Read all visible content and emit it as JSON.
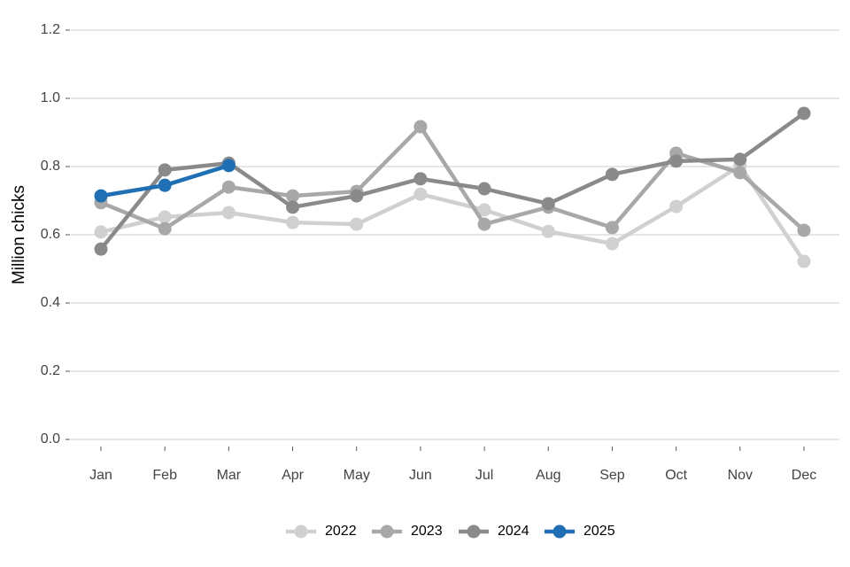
{
  "chart_data": {
    "type": "line",
    "y_label": "Million chicks",
    "categories": [
      "Jan",
      "Feb",
      "Mar",
      "Apr",
      "May",
      "Jun",
      "Jul",
      "Aug",
      "Sep",
      "Oct",
      "Nov",
      "Dec"
    ],
    "series": [
      {
        "name": "2022",
        "color": "#d0d0d0",
        "values": [
          0.608,
          0.652,
          0.665,
          0.636,
          0.631,
          0.719,
          0.673,
          0.61,
          0.574,
          0.683,
          0.803,
          0.522
        ]
      },
      {
        "name": "2023",
        "color": "#a8a8a8",
        "values": [
          0.694,
          0.618,
          0.74,
          0.714,
          0.727,
          0.917,
          0.631,
          0.681,
          0.621,
          0.839,
          0.782,
          0.613
        ]
      },
      {
        "name": "2024",
        "color": "#8a8a8a",
        "values": [
          0.558,
          0.79,
          0.81,
          0.681,
          0.714,
          0.764,
          0.735,
          0.691,
          0.777,
          0.816,
          0.821,
          0.956
        ]
      },
      {
        "name": "2025",
        "color": "#1f6fb4",
        "values": [
          0.714,
          0.745,
          0.803,
          null,
          null,
          null,
          null,
          null,
          null,
          null,
          null,
          null
        ]
      }
    ],
    "ylim": [
      0,
      1.2
    ],
    "yticks": [
      {
        "value": 0,
        "label": "0.0"
      },
      0.2,
      0.4,
      0.6,
      0.8,
      {
        "value": 1,
        "label": "1.0"
      },
      1.2
    ],
    "grid": true,
    "legend": "bottom"
  }
}
